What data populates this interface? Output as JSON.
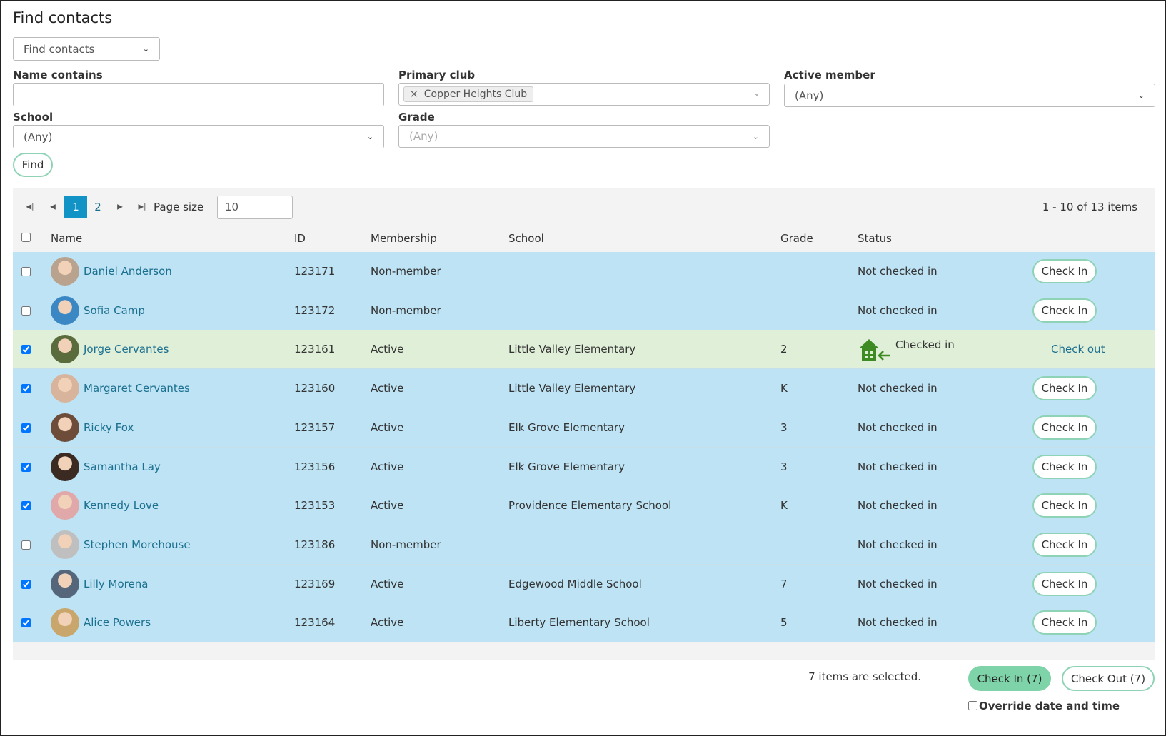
{
  "header": {
    "title": "Find contacts",
    "view_select": "Find contacts"
  },
  "filters": {
    "name_label": "Name contains",
    "primary_club_label": "Primary club",
    "primary_club_value": "Copper Heights Club",
    "active_member_label": "Active member",
    "active_member_value": "(Any)",
    "school_label": "School",
    "school_value": "(Any)",
    "grade_label": "Grade",
    "grade_value": "(Any)",
    "find_button": "Find"
  },
  "pager": {
    "pages": [
      "1",
      "2"
    ],
    "page_size_label": "Page size",
    "page_size": "10",
    "summary": "1 - 10 of 13 items"
  },
  "table": {
    "columns": [
      "Name",
      "ID",
      "Membership",
      "School",
      "Grade",
      "Status"
    ],
    "rows": [
      {
        "checked": false,
        "checked_in": false,
        "name": "Daniel Anderson",
        "id": "123171",
        "membership": "Non-member",
        "school": null,
        "grade": null,
        "status": "Not checked in",
        "action": "Check In"
      },
      {
        "checked": false,
        "checked_in": false,
        "name": "Sofia Camp",
        "id": "123172",
        "membership": "Non-member",
        "school": null,
        "grade": null,
        "status": "Not checked in",
        "action": "Check In"
      },
      {
        "checked": true,
        "checked_in": true,
        "name": "Jorge Cervantes",
        "id": "123161",
        "membership": "Active",
        "school": "Little Valley Elementary",
        "grade": "2",
        "status": "Checked in",
        "action": "Check out"
      },
      {
        "checked": true,
        "checked_in": false,
        "name": "Margaret Cervantes",
        "id": "123160",
        "membership": "Active",
        "school": "Little Valley Elementary",
        "grade": "K",
        "status": "Not checked in",
        "action": "Check In"
      },
      {
        "checked": true,
        "checked_in": false,
        "name": "Ricky Fox",
        "id": "123157",
        "membership": "Active",
        "school": "Elk Grove Elementary",
        "grade": "3",
        "status": "Not checked in",
        "action": "Check In"
      },
      {
        "checked": true,
        "checked_in": false,
        "name": "Samantha Lay",
        "id": "123156",
        "membership": "Active",
        "school": "Elk Grove Elementary",
        "grade": "3",
        "status": "Not checked in",
        "action": "Check In"
      },
      {
        "checked": true,
        "checked_in": false,
        "name": "Kennedy Love",
        "id": "123153",
        "membership": "Active",
        "school": "Providence Elementary School",
        "grade": "K",
        "status": "Not checked in",
        "action": "Check In"
      },
      {
        "checked": false,
        "checked_in": false,
        "name": "Stephen Morehouse",
        "id": "123186",
        "membership": "Non-member",
        "school": null,
        "grade": null,
        "status": "Not checked in",
        "action": "Check In"
      },
      {
        "checked": true,
        "checked_in": false,
        "name": "Lilly Morena",
        "id": "123169",
        "membership": "Active",
        "school": "Edgewood Middle School",
        "grade": "7",
        "status": "Not checked in",
        "action": "Check In"
      },
      {
        "checked": true,
        "checked_in": false,
        "name": "Alice Powers",
        "id": "123164",
        "membership": "Active",
        "school": "Liberty Elementary School",
        "grade": "5",
        "status": "Not checked in",
        "action": "Check In"
      }
    ]
  },
  "footer": {
    "selected_text": "7 items are selected.",
    "check_in_button": "Check In (7)",
    "check_out_button": "Check Out (7)",
    "override_label": "Override date and time"
  }
}
